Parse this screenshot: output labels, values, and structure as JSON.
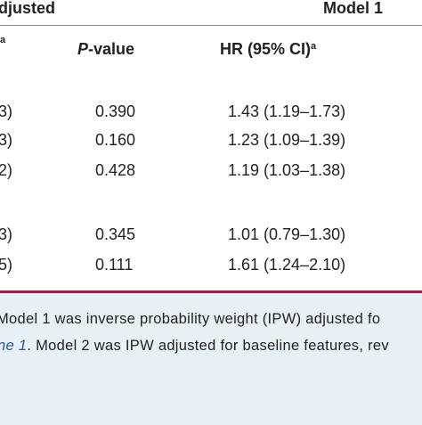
{
  "header": {
    "group_left": "djusted",
    "group_right": "Model 1",
    "columns": [
      {
        "text": "a"
      },
      {
        "italic": "P",
        "text": "-value"
      },
      {
        "text": "HR (95% CI)",
        "sup": "a"
      }
    ]
  },
  "table": {
    "rows": [
      [
        "3)",
        "0.390",
        "1.43 (1.19–1.73)"
      ],
      [
        "3)",
        "0.160",
        "1.23 (1.09–1.39)"
      ],
      [
        "2)",
        "0.428",
        "1.19 (1.03–1.38)"
      ],
      [
        "3)",
        "0.345",
        "1.01 (0.79–1.30)"
      ],
      [
        "5)",
        "0.111",
        "1.61 (1.24–2.10)"
      ]
    ]
  },
  "footnote": {
    "line1": "Model 1 was inverse probability weight (IPW) adjusted fo",
    "line2_link": "ne 1",
    "line2_text": ". Model 2 was IPW adjusted for baseline features, rev"
  }
}
